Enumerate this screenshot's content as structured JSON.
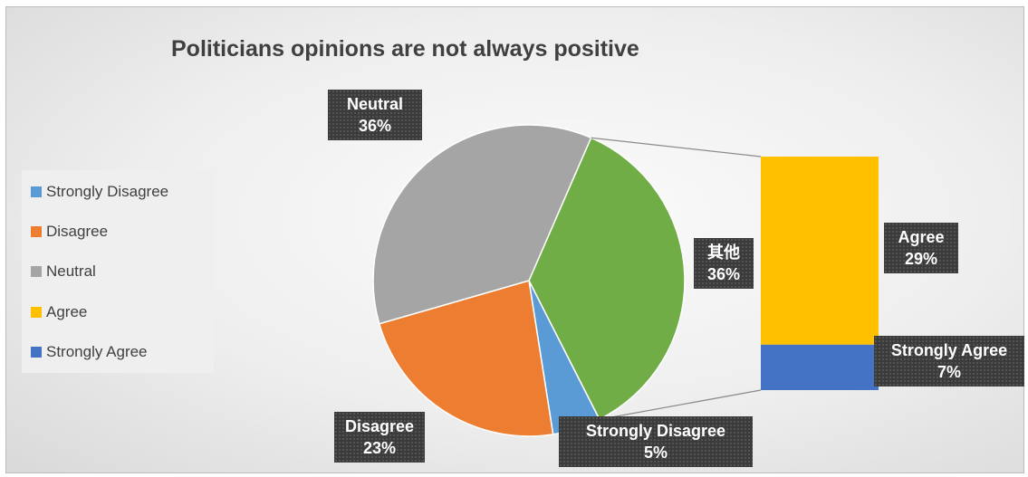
{
  "chart_data": {
    "type": "pie",
    "subtype": "bar-of-pie",
    "title": "Politicians opinions are not always positive",
    "categories": [
      "Strongly Disagree",
      "Disagree",
      "Neutral",
      "Agree",
      "Strongly Agree"
    ],
    "values": [
      5,
      23,
      36,
      29,
      7
    ],
    "unit": "%",
    "pie_slices": [
      {
        "name": "Strongly Disagree",
        "value": 5,
        "color": "#5B9BD5"
      },
      {
        "name": "Disagree",
        "value": 23,
        "color": "#ED7D31"
      },
      {
        "name": "Neutral",
        "value": 36,
        "color": "#A5A5A5"
      },
      {
        "name": "其他",
        "value": 36,
        "color": "#70AD47"
      }
    ],
    "bar_segments": [
      {
        "name": "Agree",
        "value": 29,
        "color": "#FFC000"
      },
      {
        "name": "Strongly Agree",
        "value": 7,
        "color": "#4472C4"
      }
    ],
    "legend": {
      "position": "left",
      "items": [
        {
          "label": "Strongly Disagree",
          "color": "#5B9BD5"
        },
        {
          "label": "Disagree",
          "color": "#ED7D31"
        },
        {
          "label": "Neutral",
          "color": "#A5A5A5"
        },
        {
          "label": "Agree",
          "color": "#FFC000"
        },
        {
          "label": "Strongly Agree",
          "color": "#4472C4"
        }
      ]
    },
    "data_labels": {
      "neutral": {
        "name": "Neutral",
        "pct": "36%"
      },
      "other": {
        "name": "其他",
        "pct": "36%"
      },
      "agree": {
        "name": "Agree",
        "pct": "29%"
      },
      "strongly_agree": {
        "name": "Strongly Agree",
        "pct": "7%"
      },
      "disagree": {
        "name": "Disagree",
        "pct": "23%"
      },
      "strongly_disagree": {
        "name": "Strongly Disagree",
        "pct": "5%"
      }
    }
  }
}
